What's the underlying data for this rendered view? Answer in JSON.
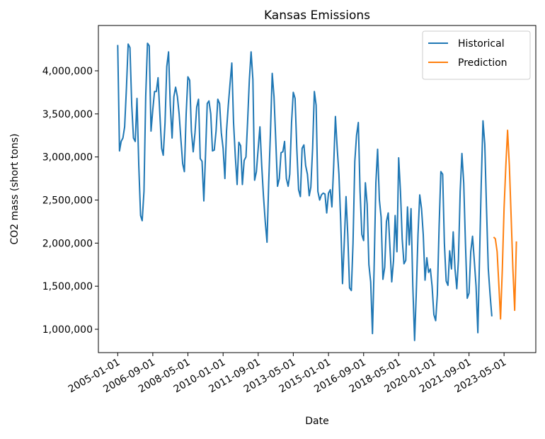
{
  "chart_data": {
    "type": "line",
    "title": "Kansas Emissions",
    "x_label": "Date",
    "y_label": "CO2 mass (short tons)",
    "xlim": [
      "2004-02-01",
      "2024-11-01"
    ],
    "xticks": [
      "2005-01-01",
      "2006-09-01",
      "2008-05-01",
      "2010-01-01",
      "2011-09-01",
      "2013-05-01",
      "2015-01-01",
      "2016-09-01",
      "2018-05-01",
      "2020-01-01",
      "2021-09-01",
      "2023-05-01"
    ],
    "ylim": [
      729000,
      4526000
    ],
    "yticks": [
      {
        "value": 1000000,
        "label": "1,000,000"
      },
      {
        "value": 1500000,
        "label": "1,500,000"
      },
      {
        "value": 2000000,
        "label": "2,000,000"
      },
      {
        "value": 2500000,
        "label": "2,500,000"
      },
      {
        "value": 3000000,
        "label": "3,000,000"
      },
      {
        "value": 3500000,
        "label": "3,500,000"
      },
      {
        "value": 4000000,
        "label": "4,000,000"
      }
    ],
    "legend": "upper right",
    "series": [
      {
        "name": "Historical",
        "color": "#1f77b4",
        "x": [
          "2005-01-01",
          "2005-02-01",
          "2005-03-01",
          "2005-04-01",
          "2005-05-01",
          "2005-06-01",
          "2005-07-01",
          "2005-08-01",
          "2005-09-01",
          "2005-10-01",
          "2005-11-01",
          "2005-12-01",
          "2006-01-01",
          "2006-02-01",
          "2006-03-01",
          "2006-04-01",
          "2006-05-01",
          "2006-06-01",
          "2006-07-01",
          "2006-08-01",
          "2006-09-01",
          "2006-10-01",
          "2006-11-01",
          "2006-12-01",
          "2007-01-01",
          "2007-02-01",
          "2007-03-01",
          "2007-04-01",
          "2007-05-01",
          "2007-06-01",
          "2007-07-01",
          "2007-08-01",
          "2007-09-01",
          "2007-10-01",
          "2007-11-01",
          "2007-12-01",
          "2008-01-01",
          "2008-02-01",
          "2008-03-01",
          "2008-04-01",
          "2008-05-01",
          "2008-06-01",
          "2008-07-01",
          "2008-08-01",
          "2008-09-01",
          "2008-10-01",
          "2008-11-01",
          "2008-12-01",
          "2009-01-01",
          "2009-02-01",
          "2009-03-01",
          "2009-04-01",
          "2009-05-01",
          "2009-06-01",
          "2009-07-01",
          "2009-08-01",
          "2009-09-01",
          "2009-10-01",
          "2009-11-01",
          "2009-12-01",
          "2010-01-01",
          "2010-02-01",
          "2010-03-01",
          "2010-04-01",
          "2010-05-01",
          "2010-06-01",
          "2010-07-01",
          "2010-08-01",
          "2010-09-01",
          "2010-10-01",
          "2010-11-01",
          "2010-12-01",
          "2011-01-01",
          "2011-02-01",
          "2011-03-01",
          "2011-04-01",
          "2011-05-01",
          "2011-06-01",
          "2011-07-01",
          "2011-08-01",
          "2011-09-01",
          "2011-10-01",
          "2011-11-01",
          "2011-12-01",
          "2012-01-01",
          "2012-02-01",
          "2012-03-01",
          "2012-04-01",
          "2012-05-01",
          "2012-06-01",
          "2012-07-01",
          "2012-08-01",
          "2012-09-01",
          "2012-10-01",
          "2012-11-01",
          "2012-12-01",
          "2013-01-01",
          "2013-02-01",
          "2013-03-01",
          "2013-04-01",
          "2013-05-01",
          "2013-06-01",
          "2013-07-01",
          "2013-08-01",
          "2013-09-01",
          "2013-10-01",
          "2013-11-01",
          "2013-12-01",
          "2014-01-01",
          "2014-02-01",
          "2014-03-01",
          "2014-04-01",
          "2014-05-01",
          "2014-06-01",
          "2014-07-01",
          "2014-08-01",
          "2014-09-01",
          "2014-10-01",
          "2014-11-01",
          "2014-12-01",
          "2015-01-01",
          "2015-02-01",
          "2015-03-01",
          "2015-04-01",
          "2015-05-01",
          "2015-06-01",
          "2015-07-01",
          "2015-08-01",
          "2015-09-01",
          "2015-10-01",
          "2015-11-01",
          "2015-12-01",
          "2016-01-01",
          "2016-02-01",
          "2016-03-01",
          "2016-04-01",
          "2016-05-01",
          "2016-06-01",
          "2016-07-01",
          "2016-08-01",
          "2016-09-01",
          "2016-10-01",
          "2016-11-01",
          "2016-12-01",
          "2017-01-01",
          "2017-02-01",
          "2017-03-01",
          "2017-04-01",
          "2017-05-01",
          "2017-06-01",
          "2017-07-01",
          "2017-08-01",
          "2017-09-01",
          "2017-10-01",
          "2017-11-01",
          "2017-12-01",
          "2018-01-01",
          "2018-02-01",
          "2018-03-01",
          "2018-04-01",
          "2018-05-01",
          "2018-06-01",
          "2018-07-01",
          "2018-08-01",
          "2018-09-01",
          "2018-10-01",
          "2018-11-01",
          "2018-12-01",
          "2019-01-01",
          "2019-02-01",
          "2019-03-01",
          "2019-04-01",
          "2019-05-01",
          "2019-06-01",
          "2019-07-01",
          "2019-08-01",
          "2019-09-01",
          "2019-10-01",
          "2019-11-01",
          "2019-12-01",
          "2020-01-01",
          "2020-02-01",
          "2020-03-01",
          "2020-04-01",
          "2020-05-01",
          "2020-06-01",
          "2020-07-01",
          "2020-08-01",
          "2020-09-01",
          "2020-10-01",
          "2020-11-01",
          "2020-12-01",
          "2021-01-01",
          "2021-02-01",
          "2021-03-01",
          "2021-04-01",
          "2021-05-01",
          "2021-06-01",
          "2021-07-01",
          "2021-08-01",
          "2021-09-01",
          "2021-10-01",
          "2021-11-01",
          "2021-12-01",
          "2022-01-01",
          "2022-02-01",
          "2022-03-01",
          "2022-04-01",
          "2022-05-01",
          "2022-06-01",
          "2022-07-01",
          "2022-08-01",
          "2022-09-01",
          "2022-10-01"
        ],
        "values": [
          4300000,
          3070000,
          3180000,
          3220000,
          3350000,
          3800000,
          4310000,
          4270000,
          3600000,
          3220000,
          3180000,
          3680000,
          2900000,
          2320000,
          2260000,
          2600000,
          3700000,
          4320000,
          4290000,
          3300000,
          3550000,
          3760000,
          3760000,
          3920000,
          3500000,
          3100000,
          3020000,
          3400000,
          4050000,
          4220000,
          3600000,
          3220000,
          3700000,
          3810000,
          3700000,
          3500000,
          3200000,
          2920000,
          2830000,
          3500000,
          3930000,
          3890000,
          3300000,
          3060000,
          3280000,
          3580000,
          3670000,
          2980000,
          2950000,
          2490000,
          3000000,
          3620000,
          3650000,
          3500000,
          3070000,
          3080000,
          3300000,
          3670000,
          3620000,
          3280000,
          3100000,
          2750000,
          3300000,
          3600000,
          3850000,
          4090000,
          3400000,
          3000000,
          2680000,
          3170000,
          3130000,
          2680000,
          2960000,
          3000000,
          3400000,
          3900000,
          4220000,
          3900000,
          2730000,
          2830000,
          3100000,
          3350000,
          2900000,
          2550000,
          2250000,
          2010000,
          2700000,
          3300000,
          3970000,
          3700000,
          3200000,
          2660000,
          2750000,
          3050000,
          3060000,
          3180000,
          2750000,
          2660000,
          2800000,
          3400000,
          3750000,
          3680000,
          3100000,
          2620000,
          2540000,
          3100000,
          3140000,
          2900000,
          2800000,
          2550000,
          2650000,
          3100000,
          3760000,
          3600000,
          2600000,
          2500000,
          2560000,
          2580000,
          2570000,
          2350000,
          2580000,
          2620000,
          2420000,
          2900000,
          3470000,
          3100000,
          2800000,
          2250000,
          1530000,
          2000000,
          2540000,
          2100000,
          1480000,
          1450000,
          2000000,
          2950000,
          3250000,
          3400000,
          2600000,
          2100000,
          2030000,
          2700000,
          2450000,
          1750000,
          1550000,
          950000,
          1700000,
          2700000,
          3090000,
          2500000,
          2300000,
          1580000,
          1720000,
          2250000,
          2350000,
          1950000,
          1550000,
          1800000,
          2320000,
          1900000,
          2990000,
          2600000,
          2050000,
          1760000,
          1800000,
          2420000,
          1980000,
          2400000,
          1500000,
          870000,
          1400000,
          2100000,
          2560000,
          2400000,
          2100000,
          1570000,
          1830000,
          1660000,
          1700000,
          1500000,
          1170000,
          1100000,
          1400000,
          2200000,
          2830000,
          2800000,
          2000000,
          1560000,
          1510000,
          1910000,
          1700000,
          2130000,
          1700000,
          1470000,
          1800000,
          2600000,
          3040000,
          2700000,
          2000000,
          1360000,
          1420000,
          1900000,
          2080000,
          1800000,
          1500000,
          960000,
          1800000,
          2700000,
          3420000,
          3150000,
          2400000,
          1700000,
          1400000,
          1150000
        ]
      },
      {
        "name": "Prediction",
        "color": "#ff7f0e",
        "x": [
          "2022-11-01",
          "2022-12-01",
          "2023-01-01",
          "2023-02-01",
          "2023-03-01",
          "2023-04-01",
          "2023-05-01",
          "2023-06-01",
          "2023-07-01",
          "2023-08-01",
          "2023-09-01",
          "2023-10-01",
          "2023-11-01",
          "2023-12-01"
        ],
        "values": [
          2070000,
          2050000,
          1900000,
          1500000,
          1120000,
          1700000,
          2400000,
          2900000,
          3310000,
          2900000,
          2300000,
          1700000,
          1220000,
          2020000
        ]
      }
    ]
  }
}
